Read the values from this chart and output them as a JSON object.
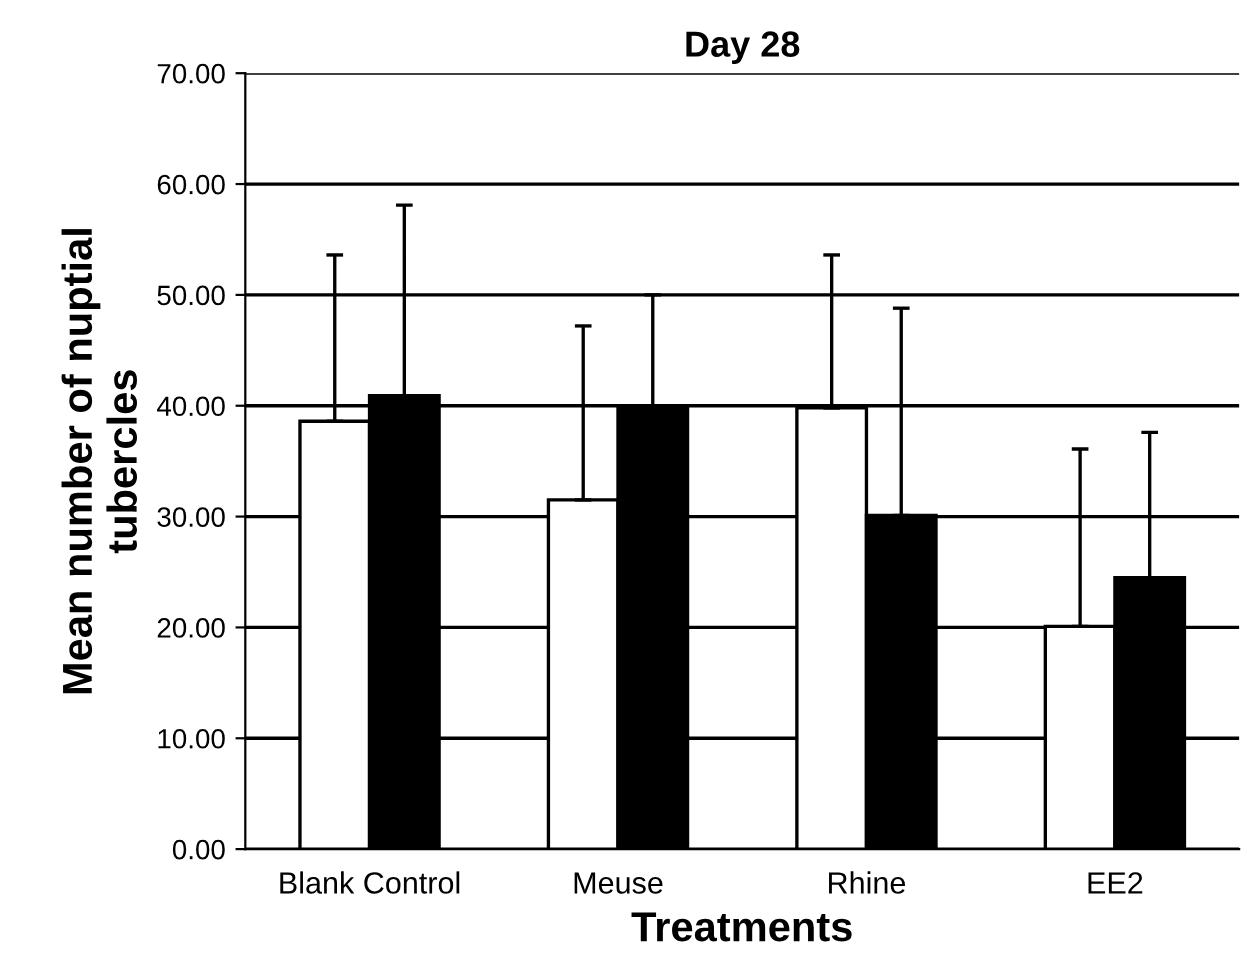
{
  "chart_data": {
    "type": "bar",
    "title": "Day 28",
    "xlabel": "Treatments",
    "ylabel": "Mean number of nuptial\ntubercles",
    "categories": [
      "Blank Control",
      "Meuse",
      "Rhine",
      "EE2"
    ],
    "series": [
      {
        "color": "#ffffff",
        "values": [
          38.6,
          31.5,
          39.8,
          20.1
        ],
        "errors": [
          [
            38.6,
            53.6
          ],
          [
            31.5,
            47.2
          ],
          [
            39.8,
            53.6
          ],
          [
            20.1,
            36.1
          ]
        ]
      },
      {
        "color": "#000000",
        "values": [
          40.9,
          39.8,
          30.1,
          24.5
        ],
        "errors": [
          [
            40.9,
            58.1
          ],
          [
            39.8,
            50.0
          ],
          [
            30.1,
            48.8
          ],
          [
            24.5,
            37.6
          ]
        ]
      }
    ],
    "ylim": [
      0,
      70
    ],
    "yticks": [
      {
        "value": 0,
        "label": "0.00"
      },
      {
        "value": 10,
        "label": "10.00"
      },
      {
        "value": 20,
        "label": "20.00"
      },
      {
        "value": 30,
        "label": "30.00"
      },
      {
        "value": 40,
        "label": "40.00"
      },
      {
        "value": 50,
        "label": "50.00"
      },
      {
        "value": 60,
        "label": "60.00"
      },
      {
        "value": 70,
        "label": "70.00"
      }
    ],
    "grid": "y",
    "legend": false
  }
}
